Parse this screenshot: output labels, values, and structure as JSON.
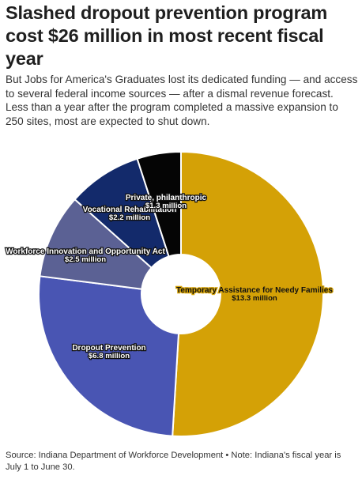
{
  "header": {
    "title": "Slashed dropout prevention program cost $26 million in most recent fiscal year",
    "subtitle": "But Jobs for America's Graduates lost its dedicated funding — and access to several federal income sources — after a dismal revenue forecast. Less than a year after the program completed a massive expansion to 250 sites, most are expected to shut down."
  },
  "footer": {
    "source": "Source: Indiana Department of Workforce Development • Note: Indiana's fiscal year is July 1 to June 30."
  },
  "chart_data": {
    "type": "pie",
    "variant": "donut",
    "title": "",
    "unit": "million",
    "total": 26,
    "slices": [
      {
        "label": "Temporary Assistance for Needy Families",
        "value": 13.3,
        "value_label": "$13.3 million",
        "color": "#d4a106"
      },
      {
        "label": "Dropout Prevention",
        "value": 6.8,
        "value_label": "$6.8 million",
        "color": "#4955b3"
      },
      {
        "label": "Workforce Innovation and Opportunity Act",
        "value": 2.5,
        "value_label": "$2.5 million",
        "color": "#5b6194"
      },
      {
        "label": "Vocational Rehabilitation",
        "value": 2.2,
        "value_label": "$2.2 million",
        "color": "#132a6b"
      },
      {
        "label": "Private, philanthropic",
        "value": 1.3,
        "value_label": "$1.3 million",
        "color": "#050505"
      }
    ]
  }
}
